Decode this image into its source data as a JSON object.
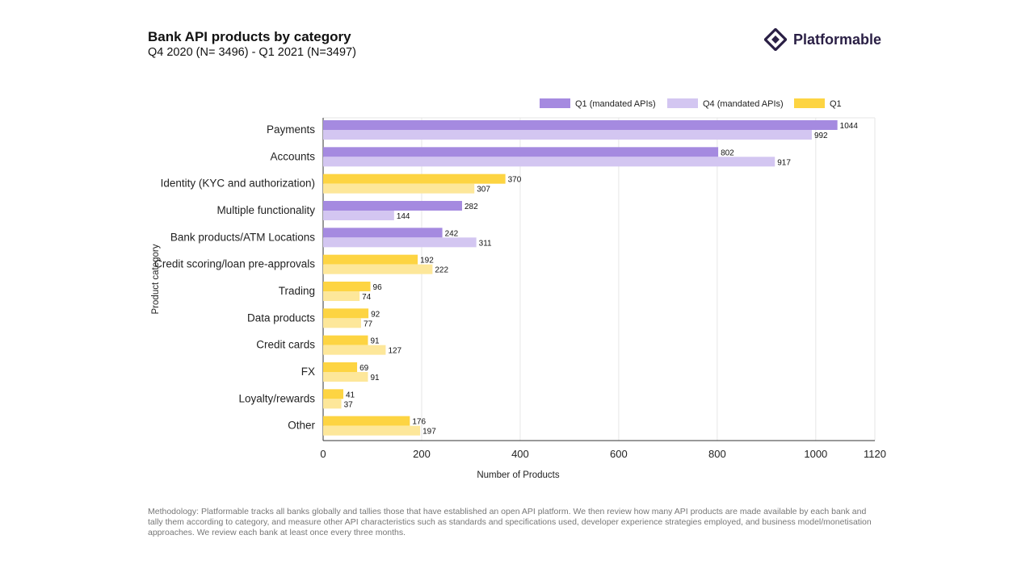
{
  "header": {
    "title": "Bank API products by category",
    "subtitle": "Q4 2020 (N= 3496) - Q1 2021 (N=3497)"
  },
  "brand": {
    "name": "Platformable",
    "logo_icon": "platformable-diamond-icon",
    "color": "#2a1f45"
  },
  "footer": {
    "methodology": "Methodology: Platformable tracks all banks globally and tallies those that have established an open API platform. We then review how many API products are made available by each bank and tally them according to category, and measure other API characteristics such as standards and specifications used, developer experience strategies employed, and business model/monetisation approaches. We review each bank at least once every three months."
  },
  "chart_data": {
    "type": "bar",
    "orientation": "horizontal",
    "xlabel": "Number of Products",
    "ylabel": "Product category",
    "xlim": [
      0,
      1120
    ],
    "xticks": [
      0,
      200,
      400,
      600,
      800,
      1000,
      1120
    ],
    "grid": true,
    "legend_position": "top-right",
    "legend": [
      {
        "name": "Q1 (mandated APIs)",
        "color": "#a58ae0"
      },
      {
        "name": "Q4 (mandated APIs)",
        "color": "#d3c6f1"
      },
      {
        "name": "Q1",
        "color": "#fdd442"
      }
    ],
    "categories": [
      {
        "label": "Payments",
        "mandated": true,
        "q1": 1044,
        "q4": 992
      },
      {
        "label": "Accounts",
        "mandated": true,
        "q1": 802,
        "q4": 917
      },
      {
        "label": "Identity (KYC and authorization)",
        "mandated": false,
        "q1": 370,
        "q4": 307
      },
      {
        "label": "Multiple functionality",
        "mandated": true,
        "q1": 282,
        "q4": 144
      },
      {
        "label": "Bank products/ATM Locations",
        "mandated": true,
        "q1": 242,
        "q4": 311
      },
      {
        "label": "Credit scoring/loan pre-approvals",
        "mandated": false,
        "q1": 192,
        "q4": 222
      },
      {
        "label": "Trading",
        "mandated": false,
        "q1": 96,
        "q4": 74
      },
      {
        "label": "Data products",
        "mandated": false,
        "q1": 92,
        "q4": 77
      },
      {
        "label": "Credit cards",
        "mandated": false,
        "q1": 91,
        "q4": 127
      },
      {
        "label": "FX",
        "mandated": false,
        "q1": 69,
        "q4": 91
      },
      {
        "label": "Loyalty/rewards",
        "mandated": false,
        "q1": 41,
        "q4": 37
      },
      {
        "label": "Other",
        "mandated": false,
        "q1": 176,
        "q4": 197
      }
    ],
    "colors": {
      "mandated_q1": "#a58ae0",
      "mandated_q4": "#d3c6f1",
      "other_q1": "#fdd442",
      "other_q4": "#fde79a",
      "grid": "#e6e6e6",
      "axis": "#333333"
    }
  }
}
